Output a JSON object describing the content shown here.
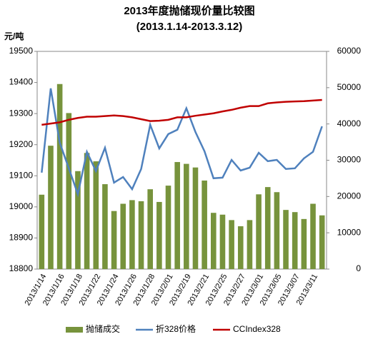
{
  "chart_data": {
    "type": "bar-line",
    "title": "2013年度抛储现价量比较图",
    "subtitle": "(2013.1.14-2013.3.12)",
    "y_label": "元/吨",
    "categories": [
      "2013/1/14",
      null,
      "2013/1/16",
      null,
      "2013/1/18",
      null,
      "2013/1/22",
      null,
      "2013/1/24",
      null,
      "2013/1/26",
      null,
      "2013/1/28",
      null,
      "2013/2/01",
      null,
      "2013/2/19",
      null,
      "2013/2/21",
      null,
      "2013/2/25",
      null,
      "2013/2/27",
      null,
      "2013/3/01",
      null,
      "2013/3/05",
      null,
      "2013/3/07",
      null,
      "2013/3/11",
      null
    ],
    "series": [
      {
        "name": "抛储成交",
        "color": "#77933c",
        "axis": "y2",
        "kind": "bar",
        "values": [
          20500,
          34000,
          51000,
          43000,
          27000,
          32000,
          29700,
          23400,
          16000,
          18000,
          19000,
          18700,
          22000,
          18500,
          23000,
          29500,
          29000,
          28000,
          24400,
          15500,
          15000,
          13500,
          11800,
          13500,
          20600,
          22600,
          21200,
          16300,
          15700,
          13800,
          18000,
          14800
        ]
      },
      {
        "name": "折328价格",
        "color": "#4f81bd",
        "kind": "line",
        "values": [
          19110,
          19381,
          19206,
          19124,
          19041,
          19177,
          19115,
          19190,
          19078,
          19096,
          19057,
          19122,
          19264,
          19188,
          19234,
          19248,
          19317,
          19241,
          19179,
          19092,
          19094,
          19151,
          19117,
          19126,
          19174,
          19147,
          19151,
          19122,
          19124,
          19156,
          19177,
          19259
        ]
      },
      {
        "name": "CCIndex328",
        "color": "#c00000",
        "kind": "line",
        "values": [
          19264,
          19268,
          19272,
          19280,
          19286,
          19290,
          19290,
          19292,
          19294,
          19292,
          19288,
          19282,
          19276,
          19277,
          19280,
          19288,
          19288,
          19293,
          19297,
          19301,
          19307,
          19312,
          19319,
          19324,
          19324,
          19333,
          19336,
          19338,
          19339,
          19340,
          19342,
          19344
        ]
      }
    ],
    "ylim": [
      18800,
      19500
    ],
    "yticks": [
      18800,
      18900,
      19000,
      19100,
      19200,
      19300,
      19400,
      19500
    ],
    "y2lim": [
      0,
      60000
    ],
    "y2ticks": [
      0,
      10000,
      20000,
      30000,
      40000,
      50000,
      60000
    ],
    "legend": "bottom"
  }
}
